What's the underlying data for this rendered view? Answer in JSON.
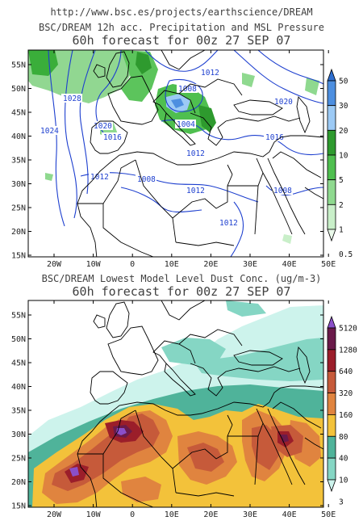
{
  "header": {
    "url": "http://www.bsc.es/projects/earthscience/DREAM"
  },
  "map_top": {
    "title_line1": "BSC/DREAM 12h acc. Precipitation and MSL Pressure",
    "title_line2": "60h forecast for 00z 27 SEP 07",
    "lat_labels": [
      "55N",
      "50N",
      "45N",
      "40N",
      "35N",
      "30N",
      "25N",
      "20N",
      "15N"
    ],
    "lon_labels": [
      "20W",
      "10W",
      "0",
      "10E",
      "20E",
      "30E",
      "40E",
      "50E"
    ],
    "isobar_labels": [
      "1012",
      "1028",
      "1008",
      "1020",
      "1024",
      "1020",
      "1016",
      "1004",
      "1012",
      "1016",
      "1012",
      "1008",
      "1012",
      "1008",
      "1012"
    ],
    "colorbar": {
      "labels": [
        "50",
        "30",
        "20",
        "10",
        "5",
        "2",
        "1",
        "0.5"
      ],
      "colors": [
        "#2f6fd0",
        "#4d8fe0",
        "#9ccaf5",
        "#2e9a2e",
        "#4fbf4f",
        "#8fd98f",
        "#c9efc9",
        "#eaf9ea"
      ]
    }
  },
  "map_bottom": {
    "title_line1": "BSC/DREAM Lowest Model Level Dust Conc. (ug/m-3)",
    "title_line2": "60h forecast for 00z 27 SEP 07",
    "lat_labels": [
      "55N",
      "50N",
      "45N",
      "40N",
      "35N",
      "30N",
      "25N",
      "20N",
      "15N"
    ],
    "lon_labels": [
      "20W",
      "10W",
      "0",
      "10E",
      "20E",
      "30E",
      "40E",
      "50E"
    ],
    "colorbar": {
      "labels": [
        "5120",
        "1280",
        "640",
        "320",
        "160",
        "80",
        "40",
        "10",
        "3"
      ],
      "colors": [
        "#8a4fc9",
        "#6a1a4a",
        "#9b1e2a",
        "#c65a3a",
        "#e0843f",
        "#f3c23a",
        "#4fb39a",
        "#85d6c4",
        "#cdf3ec"
      ]
    }
  }
}
